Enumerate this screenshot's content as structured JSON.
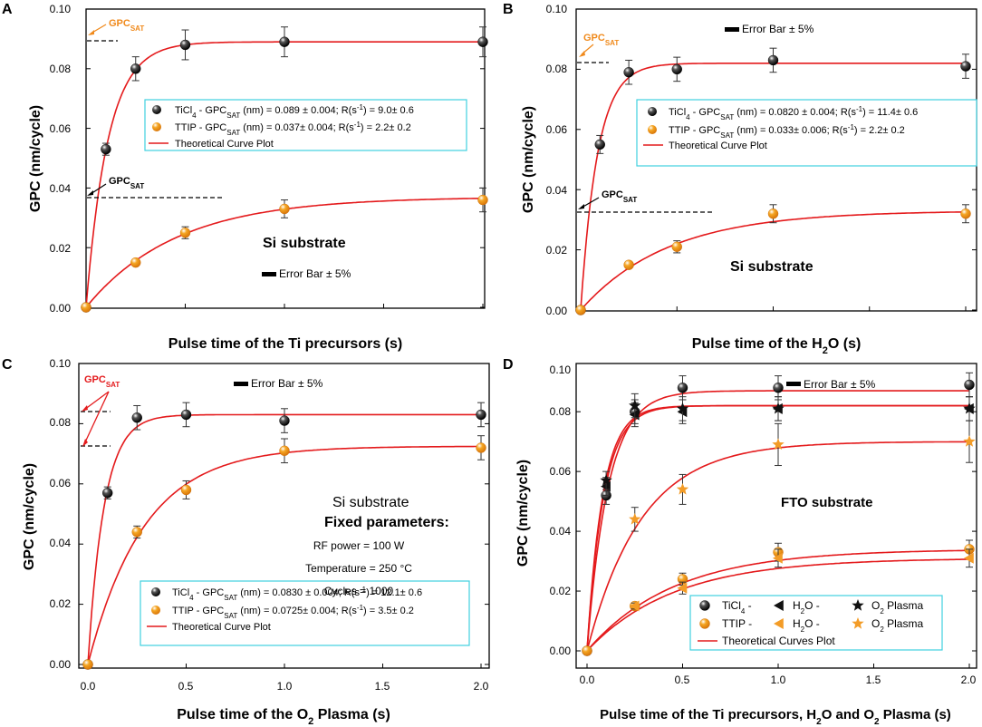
{
  "colors": {
    "curve": "#e41a1c",
    "orange": "#f39c27",
    "black": "#111111",
    "legend_border": "#3fd0e0",
    "annotation_orange": "#f08a1c",
    "annotation_red": "#e41a1c"
  },
  "common": {
    "y_label": "GPC (nm/cycle)",
    "error_bar_label": "Error Bar ± 5%",
    "gpc_sat_main": "GPC",
    "gpc_sat_sub": "SAT"
  },
  "chart_data": [
    {
      "panel": "A",
      "type": "scatter",
      "xlabel": "Pulse time of the Ti precursors  (s)",
      "ylabel": "GPC (nm/cycle)",
      "ylim": [
        0,
        0.1
      ],
      "yticks": [
        "0.00",
        "0.02",
        "0.04",
        "0.06",
        "0.08",
        "0.10"
      ],
      "xlim": [
        0,
        2.0
      ],
      "xticks": [],
      "x_tick_labels_visible": false,
      "series": [
        {
          "name": "TiCl4",
          "marker": "ball-black",
          "x": [
            0,
            0.1,
            0.25,
            0.5,
            1.0,
            2.0
          ],
          "y": [
            0,
            0.053,
            0.08,
            0.088,
            0.089,
            0.089
          ],
          "err": [
            0,
            0.002,
            0.004,
            0.005,
            0.005,
            0.005
          ]
        },
        {
          "name": "TTIP",
          "marker": "ball-orange",
          "x": [
            0,
            0.25,
            0.5,
            1.0,
            2.0
          ],
          "y": [
            0,
            0.015,
            0.025,
            0.033,
            0.036
          ],
          "err": [
            0,
            0.001,
            0.002,
            0.003,
            0.004
          ]
        }
      ],
      "curves": [
        {
          "sat": 0.089,
          "rate": 9.0
        },
        {
          "sat": 0.037,
          "rate": 2.2
        }
      ],
      "legend": [
        {
          "marker": "ball-black",
          "pre": "TiCl",
          "sub1": "4",
          "mid": " - GPC",
          "sub2": "SAT",
          "post": " (nm) = 0.089 ± 0.004; R(s",
          "sup": "-1",
          "end": ") = 9.0± 0.6"
        },
        {
          "marker": "ball-orange",
          "pre": "TTIP - GPC",
          "sub1": "SAT",
          "mid": " (nm) = 0.037± 0.004; R(s",
          "sup": "-1",
          "end": ") = 2.2± 0.2"
        },
        {
          "marker": "line",
          "text": "Theoretical Curve Plot"
        }
      ],
      "annotations": {
        "substrate": "Si substrate",
        "error_bar": "Error Bar ± 5%"
      }
    },
    {
      "panel": "B",
      "type": "scatter",
      "xlabel_pre": "Pulse time of the H",
      "xlabel_sub": "2",
      "xlabel_post": "O  (s)",
      "ylabel": "GPC (nm/cycle)",
      "ylim": [
        0,
        0.1
      ],
      "yticks": [
        "0.00",
        "0.02",
        "0.04",
        "0.06",
        "0.08",
        "0.10"
      ],
      "xlim": [
        0,
        2.0
      ],
      "xticks": [],
      "x_tick_labels_visible": false,
      "series": [
        {
          "name": "TiCl4",
          "marker": "ball-black",
          "x": [
            0,
            0.1,
            0.25,
            0.5,
            1.0,
            2.0
          ],
          "y": [
            0,
            0.055,
            0.079,
            0.08,
            0.083,
            0.081
          ],
          "err": [
            0,
            0.003,
            0.004,
            0.004,
            0.004,
            0.004
          ]
        },
        {
          "name": "TTIP",
          "marker": "ball-orange",
          "x": [
            0,
            0.25,
            0.5,
            1.0,
            2.0
          ],
          "y": [
            0,
            0.015,
            0.021,
            0.032,
            0.032
          ],
          "err": [
            0,
            0.001,
            0.002,
            0.003,
            0.003
          ]
        }
      ],
      "curves": [
        {
          "sat": 0.082,
          "rate": 11.4
        },
        {
          "sat": 0.033,
          "rate": 2.2
        }
      ],
      "legend": [
        {
          "marker": "ball-black",
          "pre": "TiCl",
          "sub1": "4",
          "mid": " - GPC",
          "sub2": "SAT",
          "post": " (nm) = 0.0820 ± 0.004; R(s",
          "sup": "-1",
          "end": ") = 11.4± 0.6"
        },
        {
          "marker": "ball-orange",
          "pre": "TTIP - GPC",
          "sub1": "SAT",
          "mid": " (nm) = 0.033± 0.006; R(s",
          "sup": "-1",
          "end": ") = 2.2± 0.2"
        },
        {
          "marker": "line",
          "text": "Theoretical Curve Plot"
        }
      ],
      "annotations": {
        "substrate": "Si substrate",
        "error_bar": "Error Bar ± 5%"
      }
    },
    {
      "panel": "C",
      "type": "scatter",
      "xlabel_pre": "Pulse time of the O",
      "xlabel_sub": "2",
      "xlabel_post": " Plasma  (s)",
      "ylabel": "GPC (nm/cycle)",
      "ylim": [
        0,
        0.1
      ],
      "yticks": [
        "0.00",
        "0.02",
        "0.04",
        "0.06",
        "0.08",
        "0.10"
      ],
      "xlim": [
        0,
        2.0
      ],
      "xticks": [
        "0.0",
        "0.5",
        "1.0",
        "1.5",
        "2.0"
      ],
      "x_tick_labels_visible": true,
      "series": [
        {
          "name": "TiCl4",
          "marker": "ball-black",
          "x": [
            0,
            0.1,
            0.25,
            0.5,
            1.0,
            2.0
          ],
          "y": [
            0,
            0.057,
            0.082,
            0.083,
            0.081,
            0.083
          ],
          "err": [
            0,
            0.002,
            0.004,
            0.004,
            0.004,
            0.004
          ]
        },
        {
          "name": "TTIP",
          "marker": "ball-orange",
          "x": [
            0,
            0.25,
            0.5,
            1.0,
            2.0
          ],
          "y": [
            0,
            0.044,
            0.058,
            0.071,
            0.072
          ],
          "err": [
            0,
            0.002,
            0.003,
            0.004,
            0.004
          ]
        }
      ],
      "curves": [
        {
          "sat": 0.083,
          "rate": 12.1
        },
        {
          "sat": 0.0725,
          "rate": 3.5
        }
      ],
      "legend": [
        {
          "marker": "ball-black",
          "pre": "TiCl",
          "sub1": "4",
          "mid": " - GPC",
          "sub2": "SAT",
          "post": " (nm) = 0.0830 ± 0.004; R(s",
          "sup": "-1",
          "end": ") = 12.1± 0.6"
        },
        {
          "marker": "ball-orange",
          "pre": "TTIP - GPC",
          "sub1": "SAT",
          "mid": " (nm) = 0.0725± 0.004; R(s",
          "sup": "-1",
          "end": ") = 3.5± 0.2"
        },
        {
          "marker": "line",
          "text": "Theoretical Curve Plot"
        }
      ],
      "annotations": {
        "substrate": "Si substrate",
        "error_bar": "Error Bar ± 5%",
        "fixed_title": "Fixed parameters:",
        "params": [
          "RF power = 100 W",
          "Temperature = 250 °C",
          "Cycles = 1000"
        ]
      }
    },
    {
      "panel": "D",
      "type": "scatter",
      "xlabel_pre": "Pulse time of the Ti precursors, H",
      "xlabel_sub": "2",
      "xlabel_mid": "O and O",
      "xlabel_sub2": "2",
      "xlabel_post": " Plasma  (s)",
      "ylabel": "GPC (nm/cycle)",
      "ylim": [
        -0.005,
        0.1
      ],
      "yticks": [
        "0.00",
        "0.02",
        "0.04",
        "0.06",
        "0.08",
        "0.10"
      ],
      "xlim": [
        -0.02,
        2.02
      ],
      "xticks": [
        "0.0",
        "0.5",
        "1.0",
        "1.5",
        "2.0"
      ],
      "x_tick_labels_visible": true,
      "series": [
        {
          "name": "TiCl4 - Ti precursors",
          "marker": "ball-black",
          "x": [
            0,
            0.1,
            0.25,
            0.5,
            1.0,
            2.0
          ],
          "y": [
            0,
            0.052,
            0.08,
            0.088,
            0.088,
            0.089
          ],
          "err": [
            0,
            0.003,
            0.004,
            0.004,
            0.004,
            0.004
          ]
        },
        {
          "name": "TiCl4 - H2O",
          "marker": "tri-black",
          "x": [
            0.1,
            0.25,
            0.5,
            1.0,
            2.0
          ],
          "y": [
            0.055,
            0.079,
            0.08,
            0.081,
            0.081
          ],
          "err": [
            0.003,
            0.004,
            0.004,
            0.004,
            0.004
          ]
        },
        {
          "name": "TiCl4 - O2 Plasma",
          "marker": "star-black",
          "x": [
            0.1,
            0.25,
            0.5,
            1.0,
            2.0
          ],
          "y": [
            0.057,
            0.082,
            0.081,
            0.081,
            0.081
          ],
          "err": [
            0.003,
            0.004,
            0.004,
            0.004,
            0.004
          ]
        },
        {
          "name": "TTIP - Ti precursors",
          "marker": "ball-orange",
          "x": [
            0,
            0.25,
            0.5,
            1.0,
            2.0
          ],
          "y": [
            0,
            0.015,
            0.024,
            0.033,
            0.034
          ],
          "err": [
            0,
            0.001,
            0.002,
            0.003,
            0.003
          ]
        },
        {
          "name": "TTIP - H2O",
          "marker": "tri-orange",
          "x": [
            0.25,
            0.5,
            1.0,
            2.0
          ],
          "y": [
            0.015,
            0.021,
            0.031,
            0.031
          ],
          "err": [
            0.001,
            0.002,
            0.003,
            0.003
          ]
        },
        {
          "name": "TTIP - O2 Plasma",
          "marker": "star-orange",
          "x": [
            0.25,
            0.5,
            1.0,
            2.0
          ],
          "y": [
            0.044,
            0.054,
            0.069,
            0.07
          ],
          "err": [
            0.004,
            0.005,
            0.007,
            0.007
          ]
        }
      ],
      "curves": [
        {
          "sat": 0.087,
          "rate": 9.0
        },
        {
          "sat": 0.082,
          "rate": 11.4
        },
        {
          "sat": 0.082,
          "rate": 12.1
        },
        {
          "sat": 0.034,
          "rate": 2.2
        },
        {
          "sat": 0.031,
          "rate": 2.2
        },
        {
          "sat": 0.07,
          "rate": 3.5
        }
      ],
      "legend_rows": [
        {
          "label": "TiCl",
          "label_sub": "4",
          "label_post": " -",
          "m1": "ball-black",
          "m2": "tri-black",
          "t2": "H",
          "t2_sub": "2",
          "t2_post": "O -",
          "m3": "star-black",
          "t3": "O",
          "t3_sub": "2",
          "t3_post": " Plasma"
        },
        {
          "label": "TTIP -",
          "label_sub": "",
          "label_post": "",
          "m1": "ball-orange",
          "m2": "tri-orange",
          "t2": "H",
          "t2_sub": "2",
          "t2_post": "O -",
          "m3": "star-orange",
          "t3": "O",
          "t3_sub": "2",
          "t3_post": " Plasma"
        }
      ],
      "legend_line": "Theoretical Curves Plot",
      "annotations": {
        "substrate": "FTO substrate",
        "error_bar": "Error Bar ± 5%"
      }
    }
  ]
}
